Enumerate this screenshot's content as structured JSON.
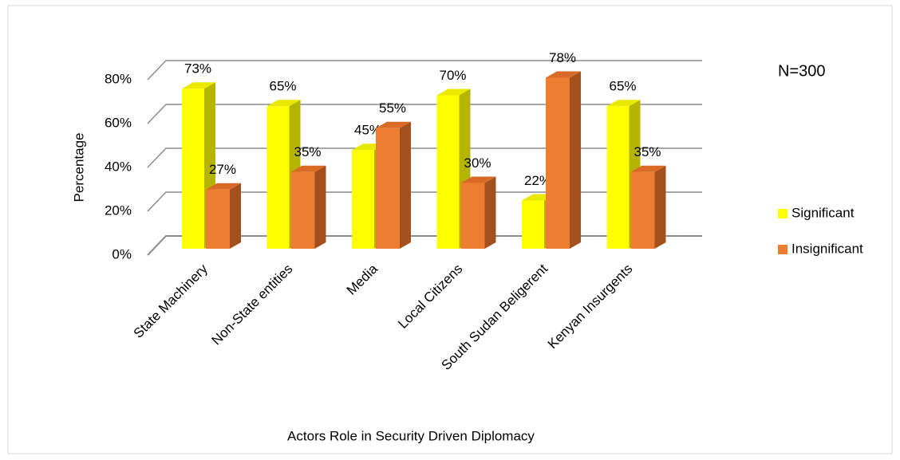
{
  "chart_data": {
    "type": "bar3d",
    "xlabel": "Actors Role in Security Driven Diplomacy",
    "ylabel": "Percentage",
    "annotation": "N=300",
    "categories": [
      "State Machinery",
      "Non-State entities",
      "Media",
      "Local Citizens",
      "South Sudan Beligerent",
      "Kenyan Insurgents"
    ],
    "series": [
      {
        "name": "Significant",
        "color": "#ffff00",
        "side_color": "#b5b500",
        "top_color": "#e8e800",
        "values": [
          73,
          65,
          45,
          70,
          22,
          65
        ],
        "value_labels": [
          "73%",
          "65%",
          "45%",
          "70%",
          "22%",
          "65%"
        ]
      },
      {
        "name": "Insignificant",
        "color": "#ed7d31",
        "side_color": "#a4501e",
        "top_color": "#d96a25",
        "values": [
          27,
          35,
          55,
          30,
          78,
          35
        ],
        "value_labels": [
          "27%",
          "35%",
          "55%",
          "30%",
          "78%",
          "35%"
        ]
      }
    ],
    "ylim": [
      0,
      80
    ],
    "yticks": [
      {
        "value": 0,
        "label": "0%"
      },
      {
        "value": 20,
        "label": "20%"
      },
      {
        "value": 40,
        "label": "40%"
      },
      {
        "value": 60,
        "label": "60%"
      },
      {
        "value": 80,
        "label": "80%"
      }
    ],
    "grid": true,
    "legend": "right"
  }
}
